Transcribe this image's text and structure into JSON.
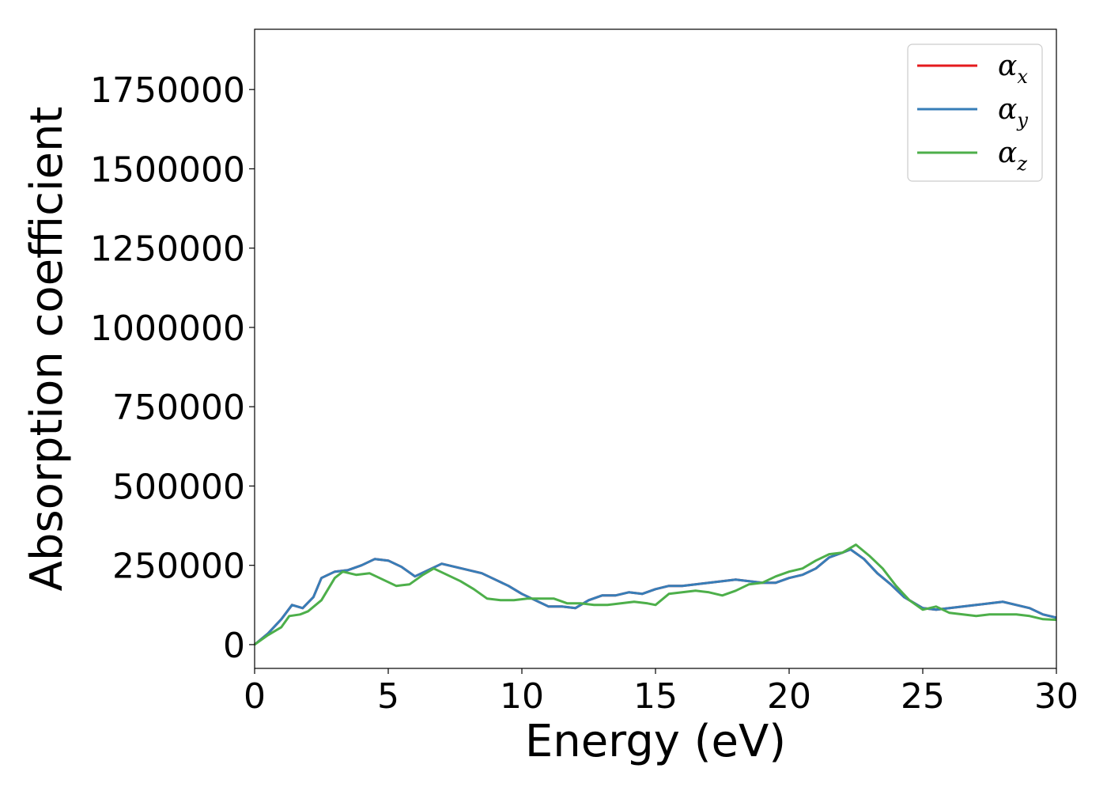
{
  "chart_data": {
    "type": "line",
    "title": "",
    "xlabel": "Energy (eV)",
    "ylabel": "Absorption coefficient",
    "xlim": [
      0,
      30
    ],
    "ylim": [
      -75000,
      1940000
    ],
    "xticks": [
      0,
      5,
      10,
      15,
      20,
      25,
      30
    ],
    "xtick_labels": [
      "0",
      "5",
      "10",
      "15",
      "20",
      "25",
      "30"
    ],
    "yticks": [
      0,
      250000,
      500000,
      750000,
      1000000,
      1250000,
      1500000,
      1750000
    ],
    "ytick_labels": [
      "0",
      "250000",
      "500000",
      "750000",
      "1000000",
      "1250000",
      "1500000",
      "1750000"
    ],
    "grid": false,
    "legend_position": "top-right",
    "series": [
      {
        "name": "α_x",
        "legend_symbol": "α",
        "legend_sub": "x",
        "color": "#e41a1c",
        "x": [
          0,
          0.5,
          1.0,
          1.4,
          1.8,
          2.2,
          2.5,
          3.0,
          3.5,
          4.0,
          4.5,
          5.0,
          5.5,
          6.0,
          6.5,
          7.0,
          7.5,
          8.0,
          8.5,
          9.0,
          9.5,
          10.0,
          10.5,
          11.0,
          11.5,
          12.0,
          12.5,
          13.0,
          13.5,
          14.0,
          14.5,
          15.0,
          15.5,
          16.0,
          16.5,
          17.0,
          17.5,
          18.0,
          18.5,
          19.0,
          19.5,
          20.0,
          20.5,
          21.0,
          21.5,
          22.0,
          22.3,
          22.8,
          23.3,
          23.8,
          24.3,
          25.0,
          25.5,
          26.0,
          26.5,
          27.0,
          27.5,
          28.0,
          28.5,
          29.0,
          29.5,
          30.0
        ],
        "y": [
          0,
          35000,
          80000,
          125000,
          115000,
          150000,
          210000,
          230000,
          235000,
          250000,
          270000,
          265000,
          245000,
          215000,
          235000,
          255000,
          245000,
          235000,
          225000,
          205000,
          185000,
          160000,
          140000,
          120000,
          120000,
          115000,
          140000,
          155000,
          155000,
          165000,
          160000,
          175000,
          185000,
          185000,
          190000,
          195000,
          200000,
          205000,
          200000,
          195000,
          195000,
          210000,
          220000,
          240000,
          275000,
          290000,
          300000,
          270000,
          225000,
          190000,
          150000,
          115000,
          110000,
          115000,
          120000,
          125000,
          130000,
          135000,
          125000,
          115000,
          95000,
          85000
        ]
      },
      {
        "name": "α_y",
        "legend_symbol": "α",
        "legend_sub": "y",
        "color": "#377eb8",
        "x": [
          0,
          0.5,
          1.0,
          1.4,
          1.8,
          2.2,
          2.5,
          3.0,
          3.5,
          4.0,
          4.5,
          5.0,
          5.5,
          6.0,
          6.5,
          7.0,
          7.5,
          8.0,
          8.5,
          9.0,
          9.5,
          10.0,
          10.5,
          11.0,
          11.5,
          12.0,
          12.5,
          13.0,
          13.5,
          14.0,
          14.5,
          15.0,
          15.5,
          16.0,
          16.5,
          17.0,
          17.5,
          18.0,
          18.5,
          19.0,
          19.5,
          20.0,
          20.5,
          21.0,
          21.5,
          22.0,
          22.3,
          22.8,
          23.3,
          23.8,
          24.3,
          25.0,
          25.5,
          26.0,
          26.5,
          27.0,
          27.5,
          28.0,
          28.5,
          29.0,
          29.5,
          30.0
        ],
        "y": [
          0,
          35000,
          80000,
          125000,
          115000,
          150000,
          210000,
          230000,
          235000,
          250000,
          270000,
          265000,
          245000,
          215000,
          235000,
          255000,
          245000,
          235000,
          225000,
          205000,
          185000,
          160000,
          140000,
          120000,
          120000,
          115000,
          140000,
          155000,
          155000,
          165000,
          160000,
          175000,
          185000,
          185000,
          190000,
          195000,
          200000,
          205000,
          200000,
          195000,
          195000,
          210000,
          220000,
          240000,
          275000,
          290000,
          300000,
          270000,
          225000,
          190000,
          150000,
          115000,
          110000,
          115000,
          120000,
          125000,
          130000,
          135000,
          125000,
          115000,
          95000,
          85000
        ]
      },
      {
        "name": "α_z",
        "legend_symbol": "α",
        "legend_sub": "z",
        "color": "#4daf4a",
        "x": [
          0,
          0.5,
          1.0,
          1.3,
          1.7,
          2.0,
          2.5,
          3.0,
          3.3,
          3.8,
          4.3,
          4.8,
          5.3,
          5.8,
          6.3,
          6.7,
          7.2,
          7.7,
          8.2,
          8.7,
          9.2,
          9.7,
          10.2,
          10.7,
          11.2,
          11.7,
          12.2,
          12.7,
          13.2,
          13.7,
          14.2,
          14.7,
          15.0,
          15.5,
          16.0,
          16.5,
          17.0,
          17.5,
          18.0,
          18.5,
          19.0,
          19.5,
          20.0,
          20.5,
          21.0,
          21.5,
          22.0,
          22.5,
          23.0,
          23.5,
          24.0,
          24.5,
          25.0,
          25.5,
          26.0,
          26.5,
          27.0,
          27.5,
          28.0,
          28.5,
          29.0,
          29.5,
          30.0
        ],
        "y": [
          0,
          30000,
          55000,
          90000,
          95000,
          105000,
          140000,
          210000,
          230000,
          220000,
          225000,
          205000,
          185000,
          190000,
          220000,
          240000,
          220000,
          200000,
          175000,
          145000,
          140000,
          140000,
          145000,
          145000,
          145000,
          130000,
          130000,
          125000,
          125000,
          130000,
          135000,
          130000,
          125000,
          160000,
          165000,
          170000,
          165000,
          155000,
          170000,
          190000,
          195000,
          215000,
          230000,
          240000,
          265000,
          285000,
          290000,
          315000,
          280000,
          240000,
          185000,
          140000,
          110000,
          120000,
          100000,
          95000,
          90000,
          95000,
          95000,
          95000,
          90000,
          80000,
          78000
        ]
      }
    ]
  }
}
